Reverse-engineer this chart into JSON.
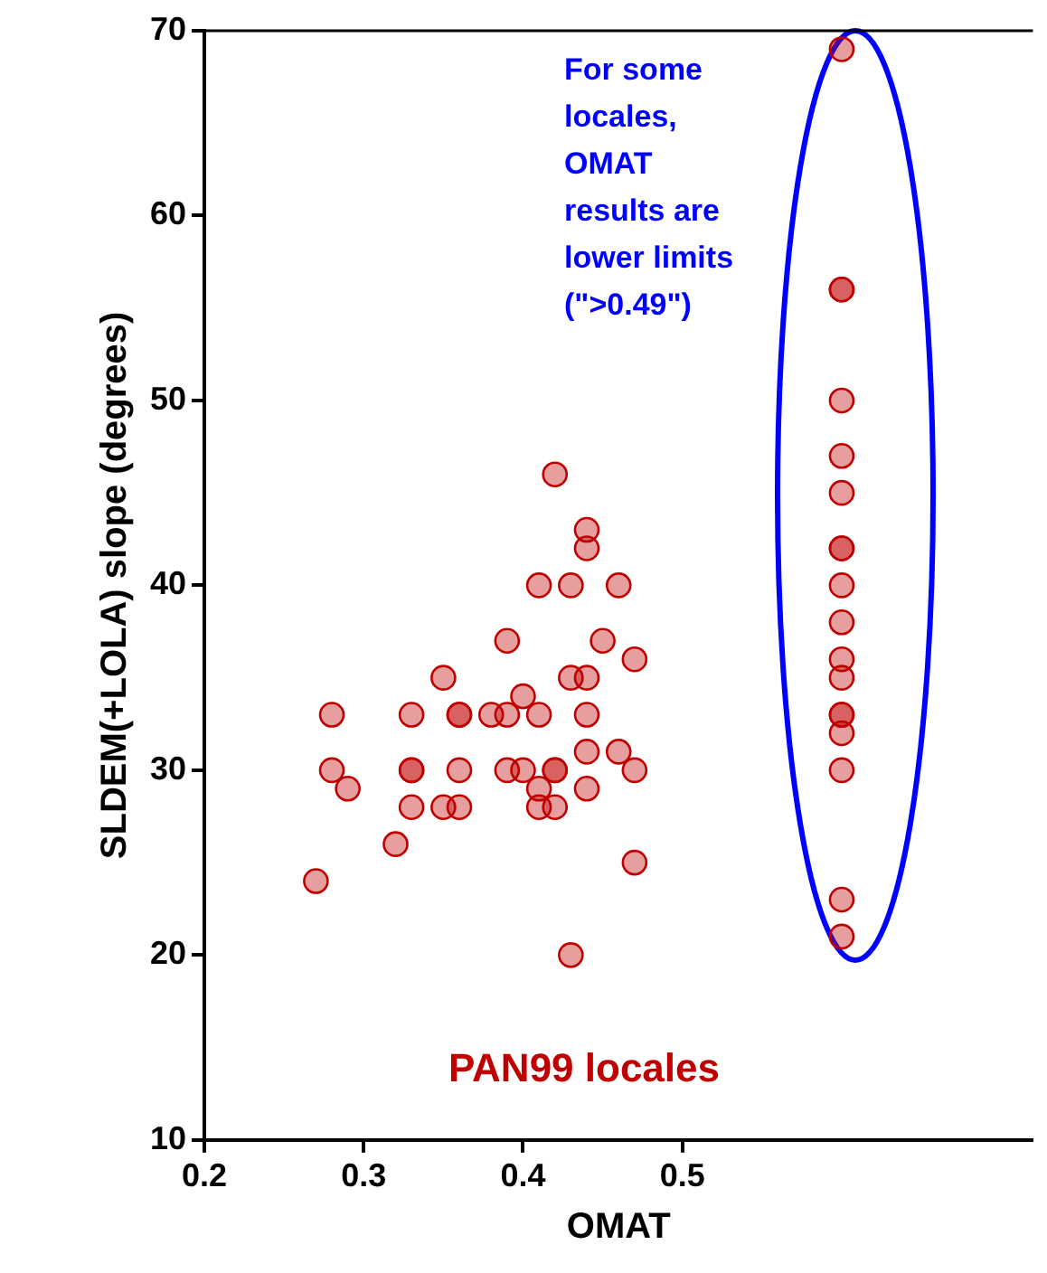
{
  "chart_data": {
    "type": "scatter",
    "xlabel": "OMAT",
    "ylabel": "SLDEM(+LOLA) slope (degrees)",
    "xlim": [
      0.2,
      0.72
    ],
    "xticks": [
      0.2,
      0.3,
      0.4,
      0.5
    ],
    "ylim": [
      10,
      70
    ],
    "yticks": [
      10,
      20,
      30,
      40,
      50,
      60,
      70
    ],
    "grid": false,
    "legend": false,
    "marker": "circle",
    "annotations": [
      "For some locales, OMAT results are lower limits (\">0.49\")",
      "PAN99 locales"
    ],
    "series": [
      {
        "color": "#c00000",
        "x": [
          0.42,
          0.44,
          0.44,
          0.41,
          0.43,
          0.46,
          0.39,
          0.45,
          0.47,
          0.35,
          0.43,
          0.44,
          0.4,
          0.28,
          0.33,
          0.36,
          0.36,
          0.38,
          0.39,
          0.41,
          0.44,
          0.44,
          0.46,
          0.28,
          0.29,
          0.33,
          0.33,
          0.36,
          0.39,
          0.4,
          0.42,
          0.42,
          0.47,
          0.41,
          0.44,
          0.33,
          0.35,
          0.36,
          0.41,
          0.42,
          0.32,
          0.27,
          0.47,
          0.43,
          0.6,
          0.6,
          0.6,
          0.6,
          0.6,
          0.6,
          0.6,
          0.6,
          0.6,
          0.6,
          0.6,
          0.6,
          0.6,
          0.6,
          0.6,
          0.6,
          0.6,
          0.6
        ],
        "values": [
          46,
          43,
          42,
          40,
          40,
          40,
          37,
          37,
          36,
          35,
          35,
          35,
          34,
          33,
          33,
          33,
          33,
          33,
          33,
          33,
          33,
          31,
          31,
          30,
          29,
          30,
          30,
          30,
          30,
          30,
          30,
          30,
          30,
          29,
          29,
          28,
          28,
          28,
          28,
          28,
          26,
          24,
          25,
          20,
          69,
          56,
          56,
          50,
          47,
          45,
          42,
          42,
          40,
          38,
          36,
          35,
          33,
          33,
          32,
          30,
          23,
          21
        ]
      }
    ]
  }
}
